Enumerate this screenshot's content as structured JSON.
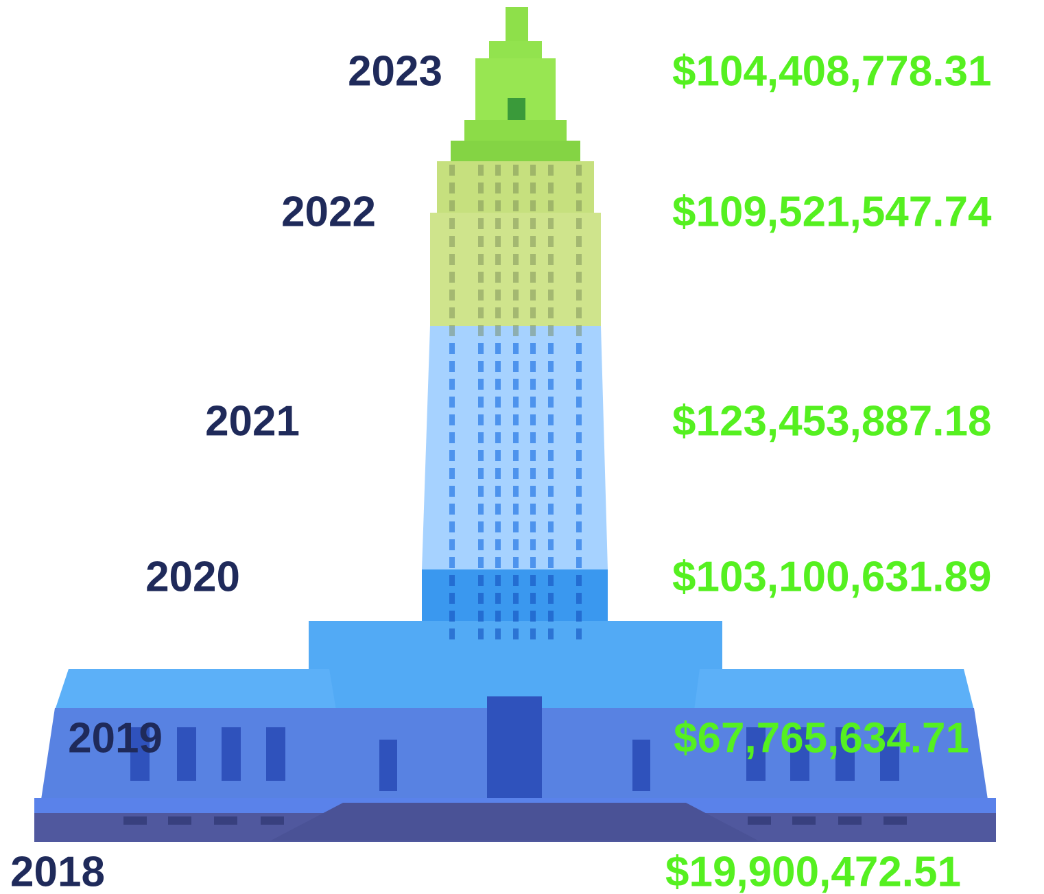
{
  "items": [
    {
      "year": "2023",
      "amount": "$104,408,778.31"
    },
    {
      "year": "2022",
      "amount": "$109,521,547.74"
    },
    {
      "year": "2021",
      "amount": "$123,453,887.18"
    },
    {
      "year": "2020",
      "amount": "$103,100,631.89"
    },
    {
      "year": "2019",
      "amount": "$67,765,634.71"
    },
    {
      "year": "2018",
      "amount": "$19,900,472.51"
    }
  ]
}
